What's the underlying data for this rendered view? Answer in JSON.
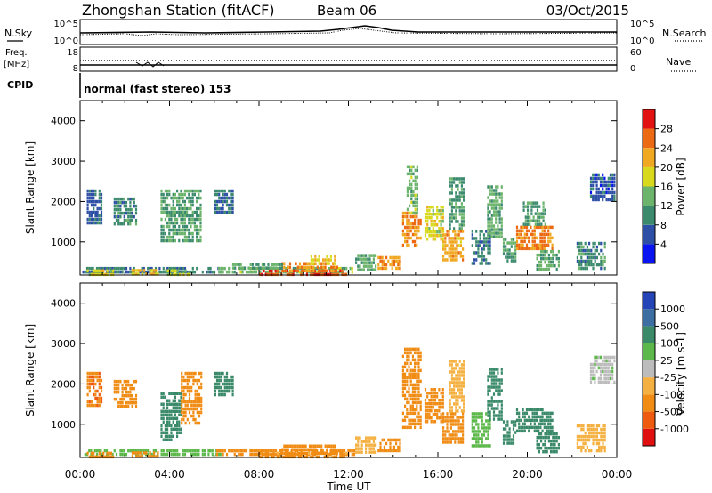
{
  "header": {
    "station": "Zhongshan Station (fitACF)",
    "beam": "Beam 06",
    "date": "03/Oct/2015"
  },
  "sidebar": {
    "nsky": "N.Sky",
    "freq_line1": "Freq.",
    "freq_line2": "[MHz]",
    "cpid": "CPID",
    "nsearch": "N.Search",
    "nave": "Nave"
  },
  "strip_axes": {
    "nsky_ticks": [
      "10^5",
      "10^0"
    ],
    "nsearch_ticks": [
      "10^5",
      "10^0"
    ],
    "freq_ticks": [
      "18",
      "8"
    ],
    "nave_ticks": [
      "60",
      "0"
    ]
  },
  "cpid_text": "normal (fast stereo) 153",
  "chart_data": [
    {
      "type": "heatmap",
      "name": "power",
      "ylabel": "Slant Range [km]",
      "xlabel": "Time UT",
      "xlim_hours": [
        0,
        24
      ],
      "ylim_km": [
        180,
        4500
      ],
      "x_ticks": [
        "00:00",
        "04:00",
        "08:00",
        "12:00",
        "16:00",
        "20:00",
        "00:00"
      ],
      "y_ticks": [
        1000,
        2000,
        3000,
        4000
      ],
      "colorbar": {
        "label": "Power [dB]",
        "tick_labels": [
          "4",
          "8",
          "12",
          "16",
          "20",
          "24",
          "28"
        ],
        "levels": [
          0,
          4,
          8,
          12,
          16,
          20,
          24,
          28,
          32
        ],
        "colors": [
          "#0a14f0",
          "#2e4fa6",
          "#3c8a6e",
          "#6cb36c",
          "#d8d81c",
          "#f0a820",
          "#ec6a14",
          "#e21212"
        ]
      },
      "regions": [
        {
          "t0": 0.1,
          "t1": 6.4,
          "r0": 220,
          "r1": 380,
          "v": 9
        },
        {
          "t0": 0.3,
          "t1": 1.5,
          "r0": 230,
          "r1": 320,
          "v": 18
        },
        {
          "t0": 2.3,
          "t1": 3.5,
          "r0": 230,
          "r1": 330,
          "v": 21
        },
        {
          "t0": 3.8,
          "t1": 4.9,
          "r0": 230,
          "r1": 320,
          "v": 17
        },
        {
          "t0": 6.0,
          "t1": 12.3,
          "r0": 210,
          "r1": 380,
          "v": 14
        },
        {
          "t0": 8.0,
          "t1": 11.9,
          "r0": 210,
          "r1": 320,
          "v": 27
        },
        {
          "t0": 9.0,
          "t1": 11.5,
          "r0": 320,
          "r1": 500,
          "v": 24
        },
        {
          "t0": 10.3,
          "t1": 11.4,
          "r0": 500,
          "r1": 680,
          "v": 19
        },
        {
          "t0": 6.8,
          "t1": 9.0,
          "r0": 380,
          "r1": 480,
          "v": 12
        },
        {
          "t0": 12.3,
          "t1": 13.2,
          "r0": 300,
          "r1": 700,
          "v": 13
        },
        {
          "t0": 13.3,
          "t1": 14.3,
          "r0": 300,
          "r1": 650,
          "v": 23
        },
        {
          "t0": 14.4,
          "t1": 15.2,
          "r0": 900,
          "r1": 1750,
          "v": 24
        },
        {
          "t0": 14.6,
          "t1": 15.1,
          "r0": 1750,
          "r1": 2900,
          "v": 14
        },
        {
          "t0": 15.4,
          "t1": 16.2,
          "r0": 1100,
          "r1": 1900,
          "v": 18
        },
        {
          "t0": 16.2,
          "t1": 17.1,
          "r0": 550,
          "r1": 1300,
          "v": 22
        },
        {
          "t0": 16.5,
          "t1": 17.2,
          "r0": 1300,
          "r1": 2600,
          "v": 11
        },
        {
          "t0": 17.5,
          "t1": 18.3,
          "r0": 500,
          "r1": 1300,
          "v": 9
        },
        {
          "t0": 18.2,
          "t1": 18.9,
          "r0": 1100,
          "r1": 2400,
          "v": 13
        },
        {
          "t0": 18.9,
          "t1": 19.5,
          "r0": 500,
          "r1": 1100,
          "v": 12
        },
        {
          "t0": 19.5,
          "t1": 21.1,
          "r0": 800,
          "r1": 1400,
          "v": 25
        },
        {
          "t0": 19.8,
          "t1": 20.8,
          "r0": 1400,
          "r1": 2000,
          "v": 12
        },
        {
          "t0": 20.4,
          "t1": 21.4,
          "r0": 300,
          "r1": 800,
          "v": 13
        },
        {
          "t0": 22.2,
          "t1": 23.5,
          "r0": 300,
          "r1": 1000,
          "v": 10
        },
        {
          "t0": 22.8,
          "t1": 23.9,
          "r0": 2000,
          "r1": 2700,
          "v": 6
        },
        {
          "t0": 1.5,
          "t1": 2.5,
          "r0": 1400,
          "r1": 2100,
          "v": 10
        },
        {
          "t0": 3.6,
          "t1": 5.4,
          "r0": 1000,
          "r1": 2300,
          "v": 12
        },
        {
          "t0": 6.0,
          "t1": 6.8,
          "r0": 1700,
          "r1": 2300,
          "v": 8
        },
        {
          "t0": 0.3,
          "t1": 1.0,
          "r0": 1500,
          "r1": 2300,
          "v": 7
        }
      ]
    },
    {
      "type": "heatmap",
      "name": "velocity",
      "ylabel": "Slant Range [km]",
      "xlabel": "Time UT",
      "xlim_hours": [
        0,
        24
      ],
      "ylim_km": [
        180,
        4500
      ],
      "x_ticks": [
        "00:00",
        "04:00",
        "08:00",
        "12:00",
        "16:00",
        "20:00",
        "00:00"
      ],
      "y_ticks": [
        1000,
        2000,
        3000,
        4000
      ],
      "colorbar": {
        "label": "Velocity [m s-1]",
        "tick_labels": [
          "-1000",
          "-500",
          "-100",
          "-25",
          "25",
          "100",
          "500",
          "1000"
        ],
        "levels": [
          -1500,
          -1000,
          -500,
          -100,
          -25,
          25,
          100,
          500,
          1000,
          1500
        ],
        "colors": [
          "#e01010",
          "#ee5a10",
          "#f08c14",
          "#f4b040",
          "#bcbcbc",
          "#5cb84a",
          "#3a8a6a",
          "#3c6ea2",
          "#2444b8"
        ]
      },
      "regions": [
        {
          "t0": 0.1,
          "t1": 6.4,
          "r0": 220,
          "r1": 380,
          "v": 60
        },
        {
          "t0": 0.3,
          "t1": 1.5,
          "r0": 230,
          "r1": 320,
          "v": -200
        },
        {
          "t0": 2.3,
          "t1": 3.5,
          "r0": 230,
          "r1": 330,
          "v": -250
        },
        {
          "t0": 6.0,
          "t1": 12.3,
          "r0": 210,
          "r1": 380,
          "v": -150
        },
        {
          "t0": 8.0,
          "t1": 11.9,
          "r0": 210,
          "r1": 320,
          "v": -120
        },
        {
          "t0": 9.0,
          "t1": 11.5,
          "r0": 320,
          "r1": 500,
          "v": -300
        },
        {
          "t0": 12.3,
          "t1": 13.2,
          "r0": 300,
          "r1": 700,
          "v": -60
        },
        {
          "t0": 13.3,
          "t1": 14.3,
          "r0": 300,
          "r1": 650,
          "v": -200
        },
        {
          "t0": 14.4,
          "t1": 15.2,
          "r0": 900,
          "r1": 2900,
          "v": -300
        },
        {
          "t0": 15.4,
          "t1": 16.2,
          "r0": 1100,
          "r1": 1900,
          "v": -250
        },
        {
          "t0": 16.2,
          "t1": 17.1,
          "r0": 550,
          "r1": 1300,
          "v": -400
        },
        {
          "t0": 16.5,
          "t1": 17.2,
          "r0": 1300,
          "r1": 2600,
          "v": -80
        },
        {
          "t0": 17.5,
          "t1": 18.3,
          "r0": 500,
          "r1": 1300,
          "v": 60
        },
        {
          "t0": 18.2,
          "t1": 18.9,
          "r0": 1100,
          "r1": 2400,
          "v": 150
        },
        {
          "t0": 18.9,
          "t1": 19.5,
          "r0": 500,
          "r1": 1100,
          "v": 200
        },
        {
          "t0": 19.5,
          "t1": 21.1,
          "r0": 800,
          "r1": 1400,
          "v": 300
        },
        {
          "t0": 20.4,
          "t1": 21.4,
          "r0": 300,
          "r1": 800,
          "v": 400
        },
        {
          "t0": 22.2,
          "t1": 23.5,
          "r0": 300,
          "r1": 1000,
          "v": -60
        },
        {
          "t0": 22.8,
          "t1": 23.9,
          "r0": 2000,
          "r1": 2700,
          "v": 10
        },
        {
          "t0": 1.5,
          "t1": 2.5,
          "r0": 1400,
          "r1": 2100,
          "v": -350
        },
        {
          "t0": 3.6,
          "t1": 4.5,
          "r0": 600,
          "r1": 1800,
          "v": 400
        },
        {
          "t0": 4.5,
          "t1": 5.4,
          "r0": 1000,
          "r1": 2300,
          "v": -400
        },
        {
          "t0": 6.0,
          "t1": 6.8,
          "r0": 1700,
          "r1": 2300,
          "v": 150
        },
        {
          "t0": 0.3,
          "t1": 1.0,
          "r0": 1500,
          "r1": 2300,
          "v": -450
        }
      ]
    }
  ]
}
